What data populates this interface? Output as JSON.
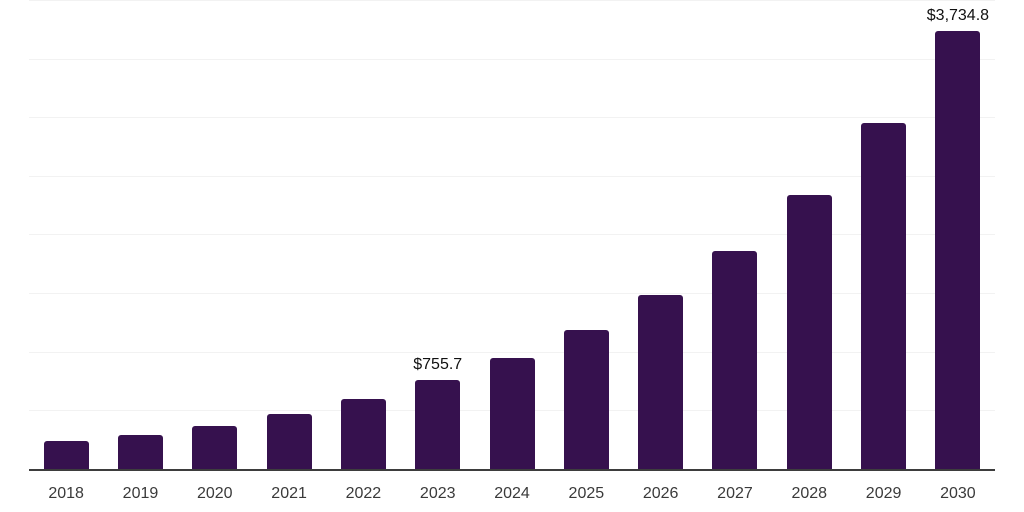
{
  "chart": {
    "background_color": "#ffffff",
    "bar_color": "#36114E",
    "axis_line_color": "#3d3d3d",
    "gridline_color": "#f2f2f2",
    "data_label_color": "#111111",
    "tick_label_color": "#3a3a3a"
  },
  "chart_data": {
    "type": "bar",
    "title": "",
    "xlabel": "",
    "ylabel": "",
    "categories": [
      "2018",
      "2019",
      "2020",
      "2021",
      "2022",
      "2023",
      "2024",
      "2025",
      "2026",
      "2027",
      "2028",
      "2029",
      "2030"
    ],
    "values": [
      237,
      292,
      368,
      470,
      601,
      755.7,
      950,
      1185,
      1480,
      1860,
      2340,
      2950,
      3734.8
    ],
    "data_labels": [
      "",
      "",
      "",
      "",
      "",
      "$755.7",
      "",
      "",
      "",
      "",
      "",
      "",
      "$3,734.8"
    ],
    "ylim": [
      0,
      4000
    ],
    "gridline_step": 500,
    "grid": true,
    "y_axis_labels_visible": false,
    "legend_position": "none"
  }
}
